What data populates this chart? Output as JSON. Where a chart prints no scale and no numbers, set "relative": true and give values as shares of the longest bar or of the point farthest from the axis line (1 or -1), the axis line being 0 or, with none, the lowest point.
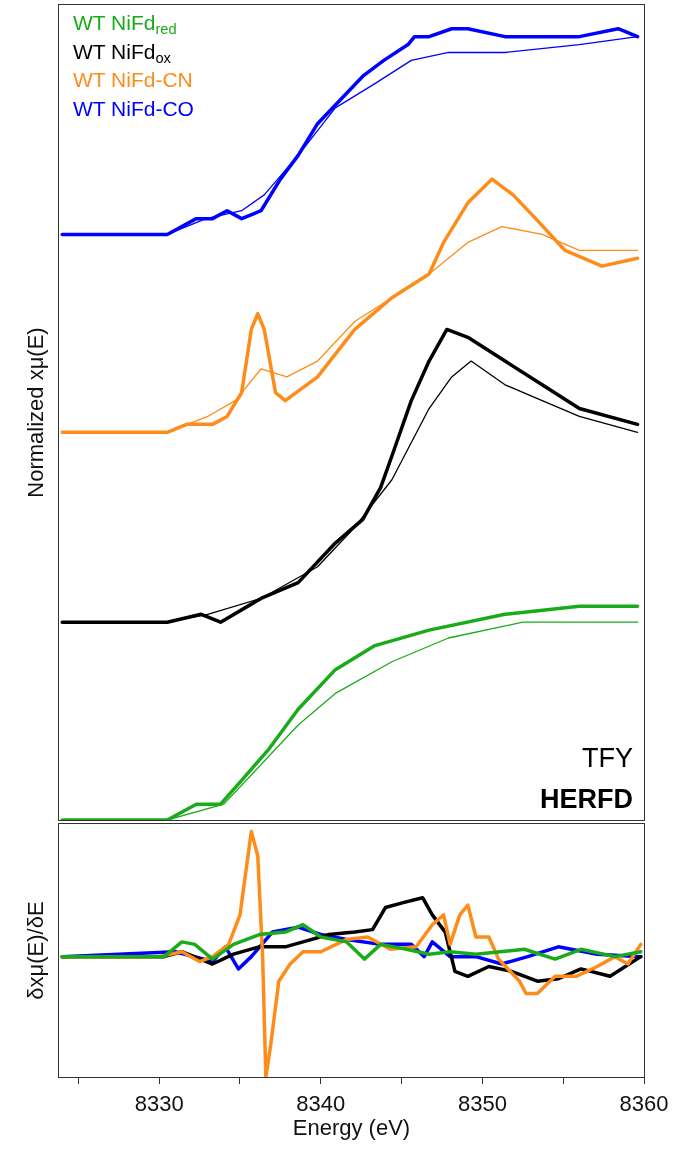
{
  "chart_data": [
    {
      "type": "line",
      "relative": true,
      "ylabel": "Normalized xμ(E)",
      "legend": "top left",
      "tick_labels": false,
      "xlim": [
        8323.8,
        8360
      ],
      "grid": false,
      "annotations": [
        "TFY",
        "HERFD"
      ],
      "series": [
        {
          "name": "WT NiFd$_{red}$",
          "color": "#1aab1a",
          "x": [
            8324.0,
            8330.5,
            8332.3,
            8333.8,
            8335.1,
            8336.8,
            8338.6,
            8340.9,
            8343.3,
            8346.7,
            8351.4,
            8356.0,
            8359.6
          ],
          "values": [
            0,
            0,
            0.02,
            0.02,
            0.05,
            0.09,
            0.14,
            0.19,
            0.22,
            0.24,
            0.26,
            0.27,
            0.27
          ]
        },
        {
          "name": "WT NiFd$_{ox}$",
          "color": "#000000",
          "x": [
            8324.0,
            8330.5,
            8332.6,
            8333.8,
            8336.3,
            8338.6,
            8340.9,
            8342.6,
            8343.7,
            8344.4,
            8345.6,
            8346.7,
            8347.8,
            8349.1,
            8351.4,
            8353.7,
            8356.0,
            8359.6
          ],
          "values": [
            0.25,
            0.25,
            0.26,
            0.25,
            0.28,
            0.3,
            0.35,
            0.38,
            0.42,
            0.46,
            0.53,
            0.58,
            0.62,
            0.61,
            0.58,
            0.55,
            0.52,
            0.5
          ]
        },
        {
          "name": "WT NiFd-CN",
          "color": "#ff8c1a",
          "x": [
            8324.0,
            8330.5,
            8331.7,
            8333.3,
            8334.2,
            8335.1,
            8335.7,
            8336.1,
            8336.5,
            8337.2,
            8337.8,
            8339.8,
            8342.1,
            8344.4,
            8346.7,
            8347.6,
            8349.1,
            8350.6,
            8351.9,
            8353.3,
            8355.1,
            8357.4,
            8359.6
          ],
          "values": [
            0.49,
            0.49,
            0.5,
            0.5,
            0.51,
            0.54,
            0.62,
            0.64,
            0.62,
            0.54,
            0.53,
            0.56,
            0.62,
            0.66,
            0.69,
            0.73,
            0.78,
            0.81,
            0.79,
            0.76,
            0.72,
            0.7,
            0.71
          ]
        },
        {
          "name": "WT NiFd-CO",
          "color": "#0000ff",
          "x": [
            8324.0,
            8330.5,
            8332.3,
            8333.3,
            8334.2,
            8335.1,
            8336.3,
            8337.5,
            8338.6,
            8339.8,
            8341.2,
            8342.6,
            8343.9,
            8345.4,
            8345.8,
            8346.7,
            8348.1,
            8349.1,
            8351.4,
            8353.7,
            8356.0,
            8358.4,
            8359.6
          ],
          "values": [
            0.74,
            0.74,
            0.76,
            0.76,
            0.77,
            0.76,
            0.77,
            0.81,
            0.84,
            0.88,
            0.91,
            0.94,
            0.96,
            0.98,
            0.99,
            0.99,
            1.0,
            1.0,
            0.99,
            0.99,
            0.99,
            1.0,
            0.99
          ]
        },
        {
          "color": "#1aab1a",
          "x": [
            8324.0,
            8330.5,
            8334.0,
            8336.3,
            8338.6,
            8340.9,
            8344.4,
            8347.9,
            8352.5,
            8359.6
          ],
          "values": [
            0,
            0,
            0.02,
            0.07,
            0.12,
            0.16,
            0.2,
            0.23,
            0.25,
            0.25
          ]
        },
        {
          "color": "#000000",
          "x": [
            8324.0,
            8330.5,
            8333.0,
            8336.3,
            8339.8,
            8342.1,
            8344.4,
            8346.7,
            8348.1,
            8349.3,
            8351.4,
            8353.7,
            8356.0,
            8359.6
          ],
          "values": [
            0.25,
            0.25,
            0.26,
            0.28,
            0.32,
            0.37,
            0.43,
            0.52,
            0.56,
            0.58,
            0.55,
            0.53,
            0.51,
            0.49
          ]
        },
        {
          "color": "#ff8c1a",
          "x": [
            8324.0,
            8330.5,
            8333.0,
            8334.7,
            8336.3,
            8337.9,
            8339.8,
            8342.1,
            8344.4,
            8346.7,
            8349.1,
            8351.2,
            8353.7,
            8356.0,
            8359.6
          ],
          "values": [
            0.49,
            0.49,
            0.51,
            0.53,
            0.57,
            0.56,
            0.58,
            0.63,
            0.66,
            0.69,
            0.73,
            0.75,
            0.74,
            0.72,
            0.72
          ]
        },
        {
          "color": "#0000ff",
          "x": [
            8324.0,
            8330.5,
            8332.9,
            8335.1,
            8336.5,
            8338.6,
            8340.9,
            8343.3,
            8345.6,
            8347.9,
            8351.4,
            8356.0,
            8359.6
          ],
          "values": [
            0.74,
            0.74,
            0.76,
            0.77,
            0.79,
            0.84,
            0.9,
            0.93,
            0.96,
            0.97,
            0.97,
            0.98,
            0.99
          ]
        }
      ]
    },
    {
      "type": "line",
      "relative": true,
      "ylabel": "δxμ(E)/δE",
      "xlabel": "Energy (eV)",
      "tick_labels": "x",
      "xlim": [
        8323.8,
        8360
      ],
      "grid": false,
      "xticks": [
        {
          "value": 8325,
          "label": null
        },
        8330,
        {
          "value": 8335,
          "label": null
        },
        8340,
        {
          "value": 8345,
          "label": null
        },
        8350,
        {
          "value": 8355,
          "label": null
        },
        8360
      ],
      "series": [
        {
          "color": "#0000ff",
          "x": [
            8324.0,
            8331.0,
            8333.3,
            8334.1,
            8334.9,
            8335.7,
            8337.0,
            8338.6,
            8340.0,
            8341.6,
            8343.7,
            8345.6,
            8346.4,
            8346.9,
            8348.0,
            8349.6,
            8351.2,
            8352.8,
            8354.7,
            8357.1,
            8359.8
          ],
          "values": [
            0.49,
            0.51,
            0.47,
            0.53,
            0.44,
            0.49,
            0.59,
            0.61,
            0.58,
            0.56,
            0.54,
            0.54,
            0.49,
            0.55,
            0.49,
            0.49,
            0.46,
            0.49,
            0.53,
            0.5,
            0.49
          ]
        },
        {
          "color": "#000000",
          "x": [
            8324.0,
            8330.3,
            8331.4,
            8333.3,
            8334.6,
            8336.2,
            8337.8,
            8338.9,
            8340.5,
            8342.1,
            8343.2,
            8344.0,
            8345.1,
            8346.3,
            8346.9,
            8347.7,
            8348.3,
            8349.1,
            8350.4,
            8351.8,
            8353.4,
            8354.7,
            8356.1,
            8357.9,
            8359.8
          ],
          "values": [
            0.49,
            0.49,
            0.51,
            0.46,
            0.5,
            0.53,
            0.53,
            0.55,
            0.58,
            0.59,
            0.6,
            0.69,
            0.71,
            0.73,
            0.66,
            0.59,
            0.43,
            0.41,
            0.45,
            0.43,
            0.39,
            0.4,
            0.44,
            0.41,
            0.49
          ]
        },
        {
          "color": "#ff8c1a",
          "x": [
            8324.0,
            8330.0,
            8331.4,
            8332.5,
            8333.3,
            8334.3,
            8335.0,
            8335.7,
            8336.1,
            8336.4,
            8336.6,
            8336.9,
            8337.4,
            8338.1,
            8338.9,
            8340.0,
            8341.6,
            8342.9,
            8344.3,
            8345.9,
            8346.9,
            8347.6,
            8348.0,
            8348.6,
            8349.1,
            8349.6,
            8350.4,
            8351.0,
            8352.3,
            8352.7,
            8353.4,
            8354.5,
            8355.8,
            8357.1,
            8358.2,
            8359.0,
            8359.8
          ],
          "values": [
            0.49,
            0.49,
            0.51,
            0.47,
            0.49,
            0.54,
            0.66,
            1.0,
            0.9,
            0.49,
            0,
            0.13,
            0.39,
            0.46,
            0.51,
            0.51,
            0.56,
            0.57,
            0.52,
            0.53,
            0.62,
            0.66,
            0.54,
            0.66,
            0.7,
            0.57,
            0.57,
            0.48,
            0.39,
            0.34,
            0.34,
            0.41,
            0.41,
            0.45,
            0.49,
            0.46,
            0.54
          ]
        },
        {
          "color": "#1aab1a",
          "x": [
            8324.0,
            8330.3,
            8331.4,
            8332.2,
            8333.3,
            8334.6,
            8336.2,
            8337.8,
            8338.9,
            8340.0,
            8341.6,
            8342.7,
            8343.7,
            8345.3,
            8346.7,
            8348.0,
            8349.6,
            8352.6,
            8354.5,
            8356.1,
            8358.2,
            8359.8
          ],
          "values": [
            0.49,
            0.49,
            0.55,
            0.54,
            0.48,
            0.54,
            0.58,
            0.59,
            0.62,
            0.57,
            0.55,
            0.48,
            0.54,
            0.52,
            0.5,
            0.51,
            0.5,
            0.52,
            0.48,
            0.52,
            0.49,
            0.51
          ]
        }
      ]
    }
  ]
}
